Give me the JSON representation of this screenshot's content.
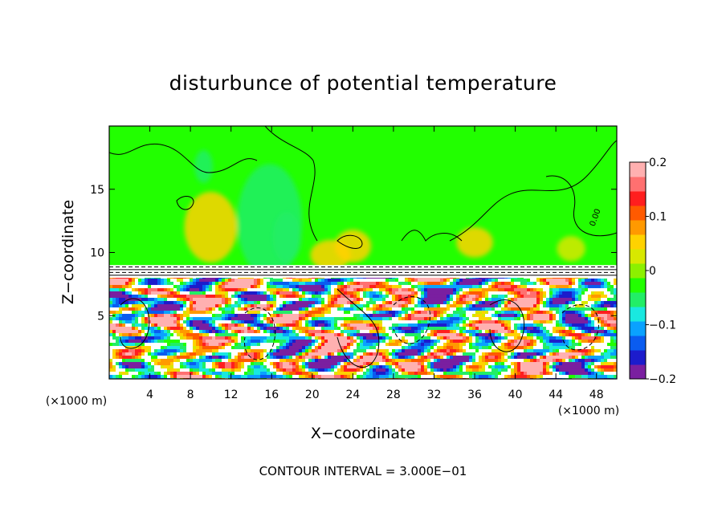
{
  "chart_data": {
    "type": "heatmap",
    "title": "disturbunce of potential temperature",
    "xlabel": "X−coordinate",
    "ylabel": "Z−coordinate",
    "x_unit_left": "(×1000 m)",
    "x_unit_right": "(×1000 m)",
    "xlim": [
      0,
      50
    ],
    "ylim": [
      0,
      20
    ],
    "xticks": [
      {
        "value": 4,
        "label": "4"
      },
      {
        "value": 8,
        "label": "8"
      },
      {
        "value": 12,
        "label": "12"
      },
      {
        "value": 16,
        "label": "16"
      },
      {
        "value": 20,
        "label": "20"
      },
      {
        "value": 24,
        "label": "24"
      },
      {
        "value": 28,
        "label": "28"
      },
      {
        "value": 32,
        "label": "32"
      },
      {
        "value": 36,
        "label": "36"
      },
      {
        "value": 40,
        "label": "40"
      },
      {
        "value": 44,
        "label": "44"
      },
      {
        "value": 48,
        "label": "48"
      }
    ],
    "yticks": [
      {
        "value": 5,
        "label": "5"
      },
      {
        "value": 10,
        "label": "10"
      },
      {
        "value": 15,
        "label": "15"
      }
    ],
    "colorbar": {
      "range": [
        -0.2,
        0.2
      ],
      "ticks": [
        {
          "value": 0.2,
          "label": "0.2"
        },
        {
          "value": 0.1,
          "label": "0.1"
        },
        {
          "value": 0,
          "label": "0"
        },
        {
          "value": -0.1,
          "label": "−0.1"
        },
        {
          "value": -0.2,
          "label": "−0.2"
        }
      ],
      "colors": [
        "#7a1fa0",
        "#1c1ccc",
        "#0a5cf0",
        "#0aa2ff",
        "#19e8e0",
        "#22ee66",
        "#22ff00",
        "#8cf000",
        "#d8e800",
        "#ffd200",
        "#ff9900",
        "#ff5a00",
        "#ff1e1e",
        "#ff7070",
        "#ffb0b0"
      ]
    },
    "field_description": {
      "upper_layer": {
        "z_range": [
          9,
          20
        ],
        "dominant_value": 0
      },
      "mixed_layer": {
        "z_range": [
          0,
          8.5
        ],
        "value_range": [
          -0.2,
          0.2
        ]
      }
    },
    "contour_interval_text": "CONTOUR INTERVAL = 3.000E−01",
    "contour_label": "0.00"
  }
}
